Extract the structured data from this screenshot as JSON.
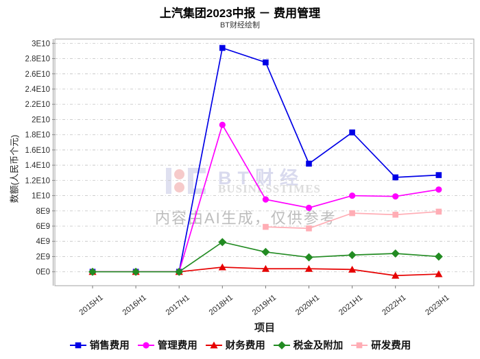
{
  "header": {
    "title": "上汽集团2023中报 － 费用管理",
    "subtitle": "BT财经绘制"
  },
  "watermark": {
    "brand": "BT财经",
    "brand_sub": "BUSINESSTIMES",
    "ai_note": "内容由AI生成，仅供参考"
  },
  "chart_data": {
    "type": "line",
    "title": "上汽集团2023中报 － 费用管理",
    "subtitle": "BT财经绘制",
    "xlabel": "项目",
    "ylabel": "数额(人民币个元)",
    "legend_position": "bottom",
    "grid": "horizontal-dashed",
    "grid_color": "#c8c8c8",
    "frame_color": "#a0a0a0",
    "tick_color": "#2a2a2a",
    "ylim": [
      0,
      30000000000
    ],
    "ytick_interval": 2000000000,
    "ytick_labels": [
      "0E0",
      "2E9",
      "4E9",
      "6E9",
      "8E9",
      "1E10",
      "1.2E10",
      "1.4E10",
      "1.6E10",
      "1.8E10",
      "2E10",
      "2.2E10",
      "2.4E10",
      "2.6E10",
      "2.8E10",
      "3E10"
    ],
    "categories": [
      "2015H1",
      "2016H1",
      "2017H1",
      "2018H1",
      "2019H1",
      "2020H1",
      "2021H1",
      "2022H1",
      "2023H1"
    ],
    "series": [
      {
        "name": "销售费用",
        "color": "#0000e6",
        "marker": "square",
        "values": [
          0,
          0,
          0,
          29400000000.0,
          27500000000.0,
          14200000000.0,
          18300000000.0,
          12400000000.0,
          12700000000.0
        ]
      },
      {
        "name": "管理费用",
        "color": "#ff00ff",
        "marker": "circle",
        "values": [
          0,
          0,
          0,
          19300000000.0,
          9500000000.0,
          8400000000.0,
          10000000000.0,
          9900000000.0,
          10800000000.0
        ]
      },
      {
        "name": "财务费用",
        "color": "#e60000",
        "marker": "triangle",
        "values": [
          0,
          0,
          0,
          600000000.0,
          400000000.0,
          400000000.0,
          300000000.0,
          -500000000.0,
          -300000000.0
        ]
      },
      {
        "name": "税金及附加",
        "color": "#228b22",
        "marker": "diamond",
        "values": [
          0,
          0,
          0,
          3900000000.0,
          2600000000.0,
          1900000000.0,
          2200000000.0,
          2400000000.0,
          2000000000.0
        ]
      },
      {
        "name": "研发费用",
        "color": "#ffadb5",
        "marker": "square",
        "values": [
          null,
          null,
          null,
          null,
          5900000000.0,
          5700000000.0,
          7700000000.0,
          7500000000.0,
          7900000000.0
        ]
      }
    ]
  }
}
